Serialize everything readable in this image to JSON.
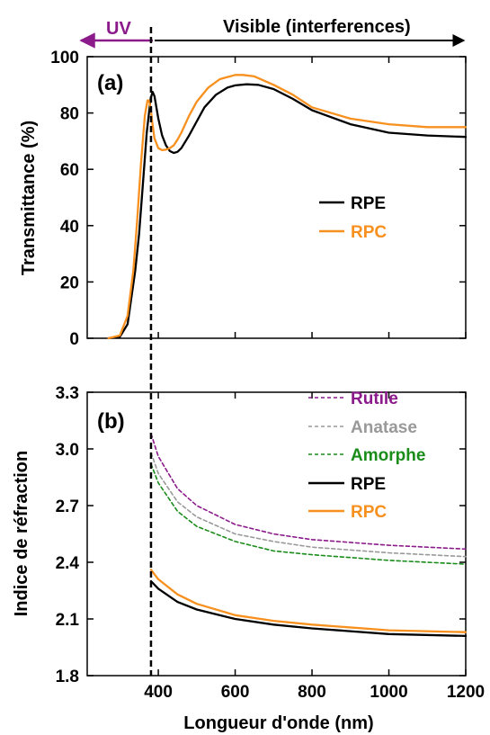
{
  "colors": {
    "rpe": "#000000",
    "rpc": "#f7901e",
    "rutile": "#8b1a8b",
    "anatase": "#999999",
    "amorphe": "#1a8c1a",
    "uv": "#8b1a8b"
  },
  "regions": {
    "uv_label": "UV",
    "visible_label": "Visible (interferences)"
  },
  "shared_x": {
    "xlabel": "Longueur d'onde (nm)",
    "xlim": [
      215,
      1200
    ],
    "ticks": [
      "400",
      "600",
      "800",
      "1000",
      "1200"
    ],
    "tick_values": [
      400,
      600,
      800,
      1000,
      1200
    ],
    "divider_x": 381
  },
  "chart_data": [
    {
      "type": "line",
      "panel_label": "(a)",
      "ylabel": "Transmittance (%)",
      "ylim": [
        0,
        100
      ],
      "yticks": [
        "0",
        "20",
        "40",
        "60",
        "80",
        "100"
      ],
      "ytick_values": [
        0,
        20,
        40,
        60,
        80,
        100
      ],
      "series": [
        {
          "name": "RPE",
          "x": [
            270,
            300,
            320,
            340,
            350,
            360,
            370,
            380,
            385,
            390,
            400,
            410,
            420,
            430,
            440,
            450,
            460,
            480,
            500,
            520,
            550,
            580,
            600,
            630,
            660,
            700,
            750,
            800,
            900,
            1000,
            1100,
            1200
          ],
          "y": [
            0,
            0.5,
            5,
            24,
            37,
            55,
            73,
            85,
            87.5,
            86,
            78,
            72,
            68.5,
            66.5,
            65.8,
            66.2,
            67.5,
            72,
            77,
            82,
            86.5,
            89,
            89.8,
            90.2,
            90,
            88.5,
            85,
            81,
            76,
            73,
            72,
            71.5
          ]
        },
        {
          "name": "RPC",
          "x": [
            270,
            300,
            320,
            335,
            345,
            355,
            365,
            372,
            376,
            380,
            384,
            390,
            400,
            410,
            420,
            430,
            440,
            450,
            460,
            480,
            500,
            530,
            560,
            600,
            620,
            650,
            700,
            750,
            800,
            900,
            1000,
            1100,
            1200
          ],
          "y": [
            0,
            1,
            8,
            24,
            42,
            62,
            79,
            84.5,
            84.3,
            82,
            77,
            71,
            67.5,
            66.8,
            67,
            67.5,
            68.5,
            70.5,
            73,
            79,
            84,
            89,
            92,
            93.5,
            93.5,
            93,
            90,
            86.5,
            82,
            78,
            76,
            75,
            75
          ]
        }
      ]
    },
    {
      "type": "line",
      "panel_label": "(b)",
      "ylabel": "Indice de réfraction",
      "ylim": [
        1.8,
        3.3
      ],
      "yticks": [
        "1.8",
        "2.1",
        "2.4",
        "2.7",
        "3.0",
        "3.3"
      ],
      "ytick_values": [
        1.8,
        2.1,
        2.4,
        2.7,
        3.0,
        3.3
      ],
      "series": [
        {
          "name": "Rutile",
          "style": "dashed",
          "x": [
            381,
            400,
            450,
            500,
            600,
            700,
            800,
            1000,
            1200
          ],
          "y": [
            3.08,
            2.96,
            2.79,
            2.7,
            2.6,
            2.55,
            2.52,
            2.49,
            2.47
          ]
        },
        {
          "name": "Anatase",
          "style": "dashed",
          "x": [
            381,
            400,
            450,
            500,
            600,
            700,
            800,
            1000,
            1200
          ],
          "y": [
            2.98,
            2.87,
            2.72,
            2.64,
            2.55,
            2.51,
            2.48,
            2.45,
            2.43
          ]
        },
        {
          "name": "Amorphe",
          "style": "dashed",
          "x": [
            381,
            400,
            450,
            500,
            600,
            700,
            800,
            1000,
            1200
          ],
          "y": [
            2.92,
            2.82,
            2.67,
            2.59,
            2.51,
            2.46,
            2.44,
            2.41,
            2.39
          ]
        },
        {
          "name": "RPE",
          "style": "solid",
          "x": [
            381,
            400,
            450,
            500,
            600,
            700,
            800,
            1000,
            1200
          ],
          "y": [
            2.3,
            2.26,
            2.19,
            2.15,
            2.1,
            2.07,
            2.05,
            2.02,
            2.01
          ]
        },
        {
          "name": "RPC",
          "style": "solid",
          "x": [
            381,
            400,
            450,
            500,
            600,
            700,
            800,
            1000,
            1200
          ],
          "y": [
            2.36,
            2.31,
            2.23,
            2.18,
            2.12,
            2.09,
            2.07,
            2.04,
            2.03
          ]
        }
      ]
    }
  ]
}
